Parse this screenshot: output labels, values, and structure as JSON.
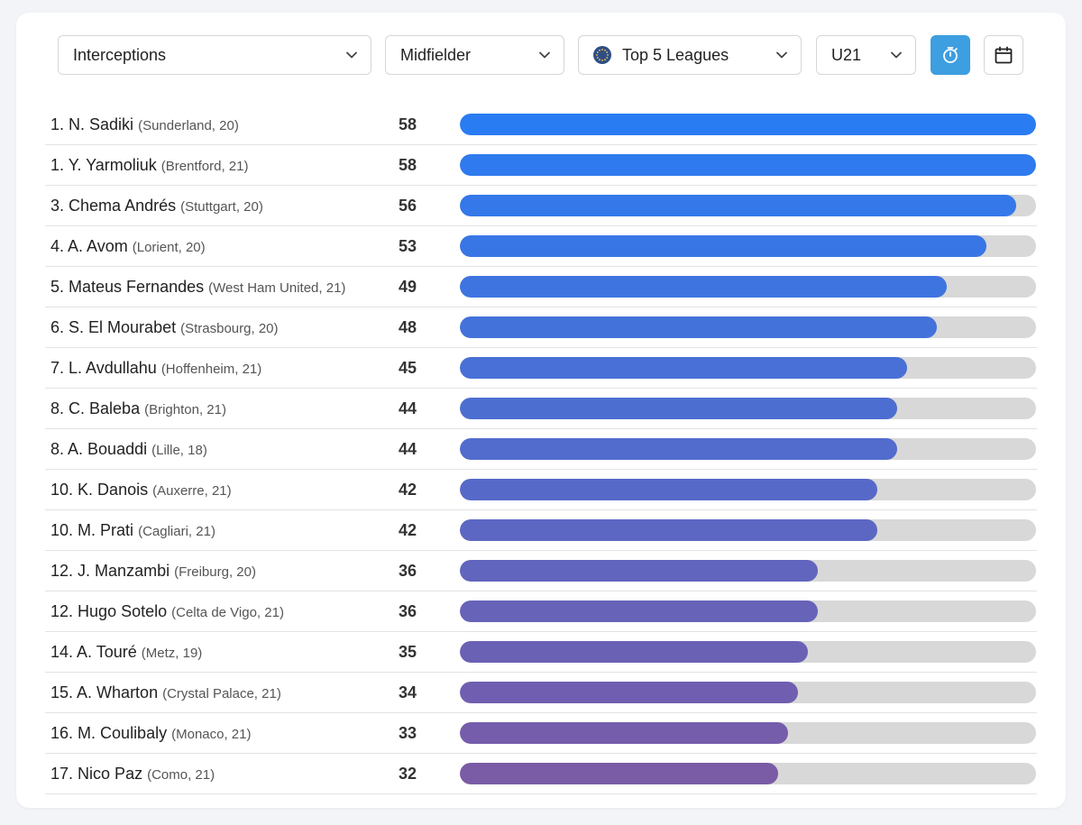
{
  "filters": {
    "metric": "Interceptions",
    "position": "Midfielder",
    "competition": "Top 5 Leagues",
    "age_group": "U21"
  },
  "icons": {
    "chevron": "chevron-down-icon",
    "competition": "eu-globe-icon",
    "timer": "stopwatch-icon",
    "calendar": "calendar-icon"
  },
  "colors": {
    "bar_start": "#2a7cf3",
    "bar_end": "#7a5ba6",
    "track": "#d8d8d8",
    "timer_button": "#3d9ee0"
  },
  "chart_data": {
    "type": "bar",
    "max_value": 58,
    "rows": [
      {
        "rank": "1.",
        "name": "N. Sadiki",
        "meta": "(Sunderland, 20)",
        "value": 58
      },
      {
        "rank": "1.",
        "name": "Y. Yarmoliuk",
        "meta": "(Brentford, 21)",
        "value": 58
      },
      {
        "rank": "3.",
        "name": "Chema Andrés",
        "meta": "(Stuttgart, 20)",
        "value": 56
      },
      {
        "rank": "4.",
        "name": "A. Avom",
        "meta": "(Lorient, 20)",
        "value": 53
      },
      {
        "rank": "5.",
        "name": "Mateus Fernandes",
        "meta": "(West Ham United, 21)",
        "value": 49
      },
      {
        "rank": "6.",
        "name": "S. El Mourabet",
        "meta": "(Strasbourg, 20)",
        "value": 48
      },
      {
        "rank": "7.",
        "name": "L. Avdullahu",
        "meta": "(Hoffenheim, 21)",
        "value": 45
      },
      {
        "rank": "8.",
        "name": "C. Baleba",
        "meta": "(Brighton, 21)",
        "value": 44
      },
      {
        "rank": "8.",
        "name": "A. Bouaddi",
        "meta": "(Lille, 18)",
        "value": 44
      },
      {
        "rank": "10.",
        "name": "K. Danois",
        "meta": "(Auxerre, 21)",
        "value": 42
      },
      {
        "rank": "10.",
        "name": "M. Prati",
        "meta": "(Cagliari, 21)",
        "value": 42
      },
      {
        "rank": "12.",
        "name": "J. Manzambi",
        "meta": "(Freiburg, 20)",
        "value": 36
      },
      {
        "rank": "12.",
        "name": "Hugo Sotelo",
        "meta": "(Celta de Vigo, 21)",
        "value": 36
      },
      {
        "rank": "14.",
        "name": "A. Touré",
        "meta": "(Metz, 19)",
        "value": 35
      },
      {
        "rank": "15.",
        "name": "A. Wharton",
        "meta": "(Crystal Palace, 21)",
        "value": 34
      },
      {
        "rank": "16.",
        "name": "M. Coulibaly",
        "meta": "(Monaco, 21)",
        "value": 33
      },
      {
        "rank": "17.",
        "name": "Nico Paz",
        "meta": "(Como, 21)",
        "value": 32
      }
    ]
  }
}
